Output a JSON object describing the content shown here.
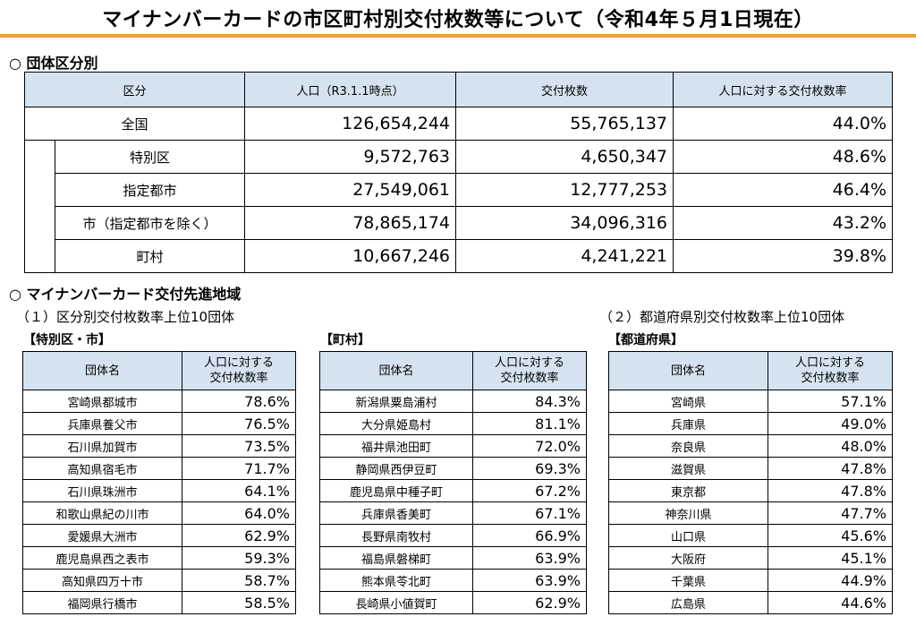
{
  "title": "マイナンバーカードの市区町村別交付枚数等について（令和4年５月1日現在）",
  "section1": {
    "heading": "○ 団体区分別"
  },
  "main_table": {
    "headers": [
      "区分",
      "人口（R3.1.1時点）",
      "交付枚数",
      "人口に対する交付枚数率"
    ],
    "rows": [
      {
        "label": "全国",
        "population": "126,654,244",
        "issued": "55,765,137",
        "rate": "44.0%"
      },
      {
        "label": "特別区",
        "population": "9,572,763",
        "issued": "4,650,347",
        "rate": "48.6%"
      },
      {
        "label": "指定都市",
        "population": "27,549,061",
        "issued": "12,777,253",
        "rate": "46.4%"
      },
      {
        "label": "市（指定都市を除く）",
        "population": "78,865,174",
        "issued": "34,096,316",
        "rate": "43.2%"
      },
      {
        "label": "町村",
        "population": "10,667,246",
        "issued": "4,241,221",
        "rate": "39.8%"
      }
    ]
  },
  "section2": {
    "heading": "○ マイナンバーカード交付先進地域",
    "sub1": "（１）区分別交付枚数率上位10団体",
    "sub2": "（２）都道府県別交付枚数率上位10団体"
  },
  "rank_headers": {
    "name": "団体名",
    "rate_line1": "人口に対する",
    "rate_line2": "交付枚数率"
  },
  "cities": {
    "label": "【特別区・市】",
    "rows": [
      {
        "name": "宮崎県都城市",
        "rate": "78.6%"
      },
      {
        "name": "兵庫県養父市",
        "rate": "76.5%"
      },
      {
        "name": "石川県加賀市",
        "rate": "73.5%"
      },
      {
        "name": "高知県宿毛市",
        "rate": "71.7%"
      },
      {
        "name": "石川県珠洲市",
        "rate": "64.1%"
      },
      {
        "name": "和歌山県紀の川市",
        "rate": "64.0%"
      },
      {
        "name": "愛媛県大洲市",
        "rate": "62.9%"
      },
      {
        "name": "鹿児島県西之表市",
        "rate": "59.3%"
      },
      {
        "name": "高知県四万十市",
        "rate": "58.7%"
      },
      {
        "name": "福岡県行橋市",
        "rate": "58.5%"
      }
    ]
  },
  "towns": {
    "label": "【町村】",
    "rows": [
      {
        "name": "新潟県粟島浦村",
        "rate": "84.3%"
      },
      {
        "name": "大分県姫島村",
        "rate": "81.1%"
      },
      {
        "name": "福井県池田町",
        "rate": "72.0%"
      },
      {
        "name": "静岡県西伊豆町",
        "rate": "69.3%"
      },
      {
        "name": "鹿児島県中種子町",
        "rate": "67.2%"
      },
      {
        "name": "兵庫県香美町",
        "rate": "67.1%"
      },
      {
        "name": "長野県南牧村",
        "rate": "66.9%"
      },
      {
        "name": "福島県磐梯町",
        "rate": "63.9%"
      },
      {
        "name": "熊本県苓北町",
        "rate": "63.9%"
      },
      {
        "name": "長崎県小値賀町",
        "rate": "62.9%"
      }
    ]
  },
  "prefectures": {
    "label": "【都道府県】",
    "rows": [
      {
        "name": "宮崎県",
        "rate": "57.1%"
      },
      {
        "name": "兵庫県",
        "rate": "49.0%"
      },
      {
        "name": "奈良県",
        "rate": "48.0%"
      },
      {
        "name": "滋賀県",
        "rate": "47.8%"
      },
      {
        "name": "東京都",
        "rate": "47.8%"
      },
      {
        "name": "神奈川県",
        "rate": "47.7%"
      },
      {
        "name": "山口県",
        "rate": "45.6%"
      },
      {
        "name": "大阪府",
        "rate": "45.1%"
      },
      {
        "name": "千葉県",
        "rate": "44.9%"
      },
      {
        "name": "広島県",
        "rate": "44.6%"
      }
    ]
  }
}
